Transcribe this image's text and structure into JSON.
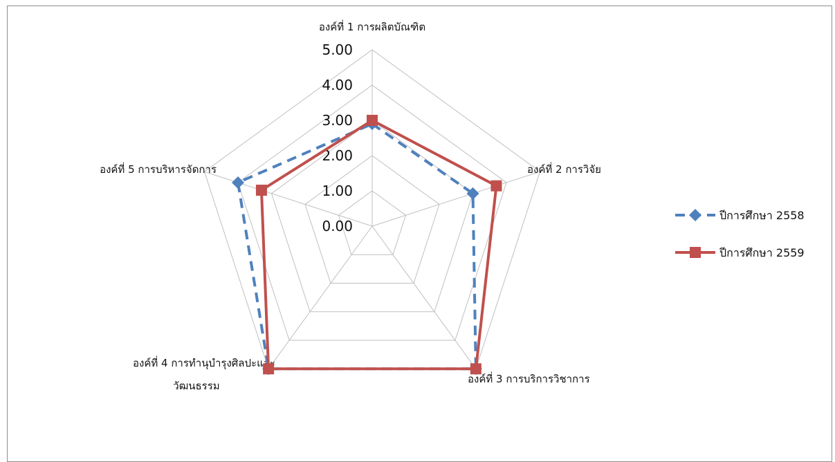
{
  "chart_data": {
    "type": "radar",
    "categories": [
      [
        "องค์ที่ 1  การผลิตบัณฑิต"
      ],
      [
        "องค์ที่ 2 การวิจัย"
      ],
      [
        "องค์ที่ 3 การบริการวิชาการ"
      ],
      [
        "องค์ที่ 4 การทำนุบำรุงศิลปะและ",
        "วัฒนธรรม"
      ],
      [
        "องค์ที่ 5 การบริหารจัดการ"
      ]
    ],
    "ticks": [
      "0.00",
      "1.00",
      "2.00",
      "3.00",
      "4.00",
      "5.00"
    ],
    "rlim": [
      0,
      5
    ],
    "grid": true,
    "legend_position": "right",
    "series": [
      {
        "name": "ปีการศึกษา 2558",
        "values": [
          2.9,
          3.0,
          5.0,
          5.0,
          4.0
        ],
        "color": "#4f81bd",
        "dash": true,
        "marker": "diamond"
      },
      {
        "name": "ปีการศึกษา 2559",
        "values": [
          3.0,
          3.7,
          5.0,
          5.0,
          3.3
        ],
        "color": "#c0504d",
        "dash": false,
        "marker": "square"
      }
    ]
  }
}
